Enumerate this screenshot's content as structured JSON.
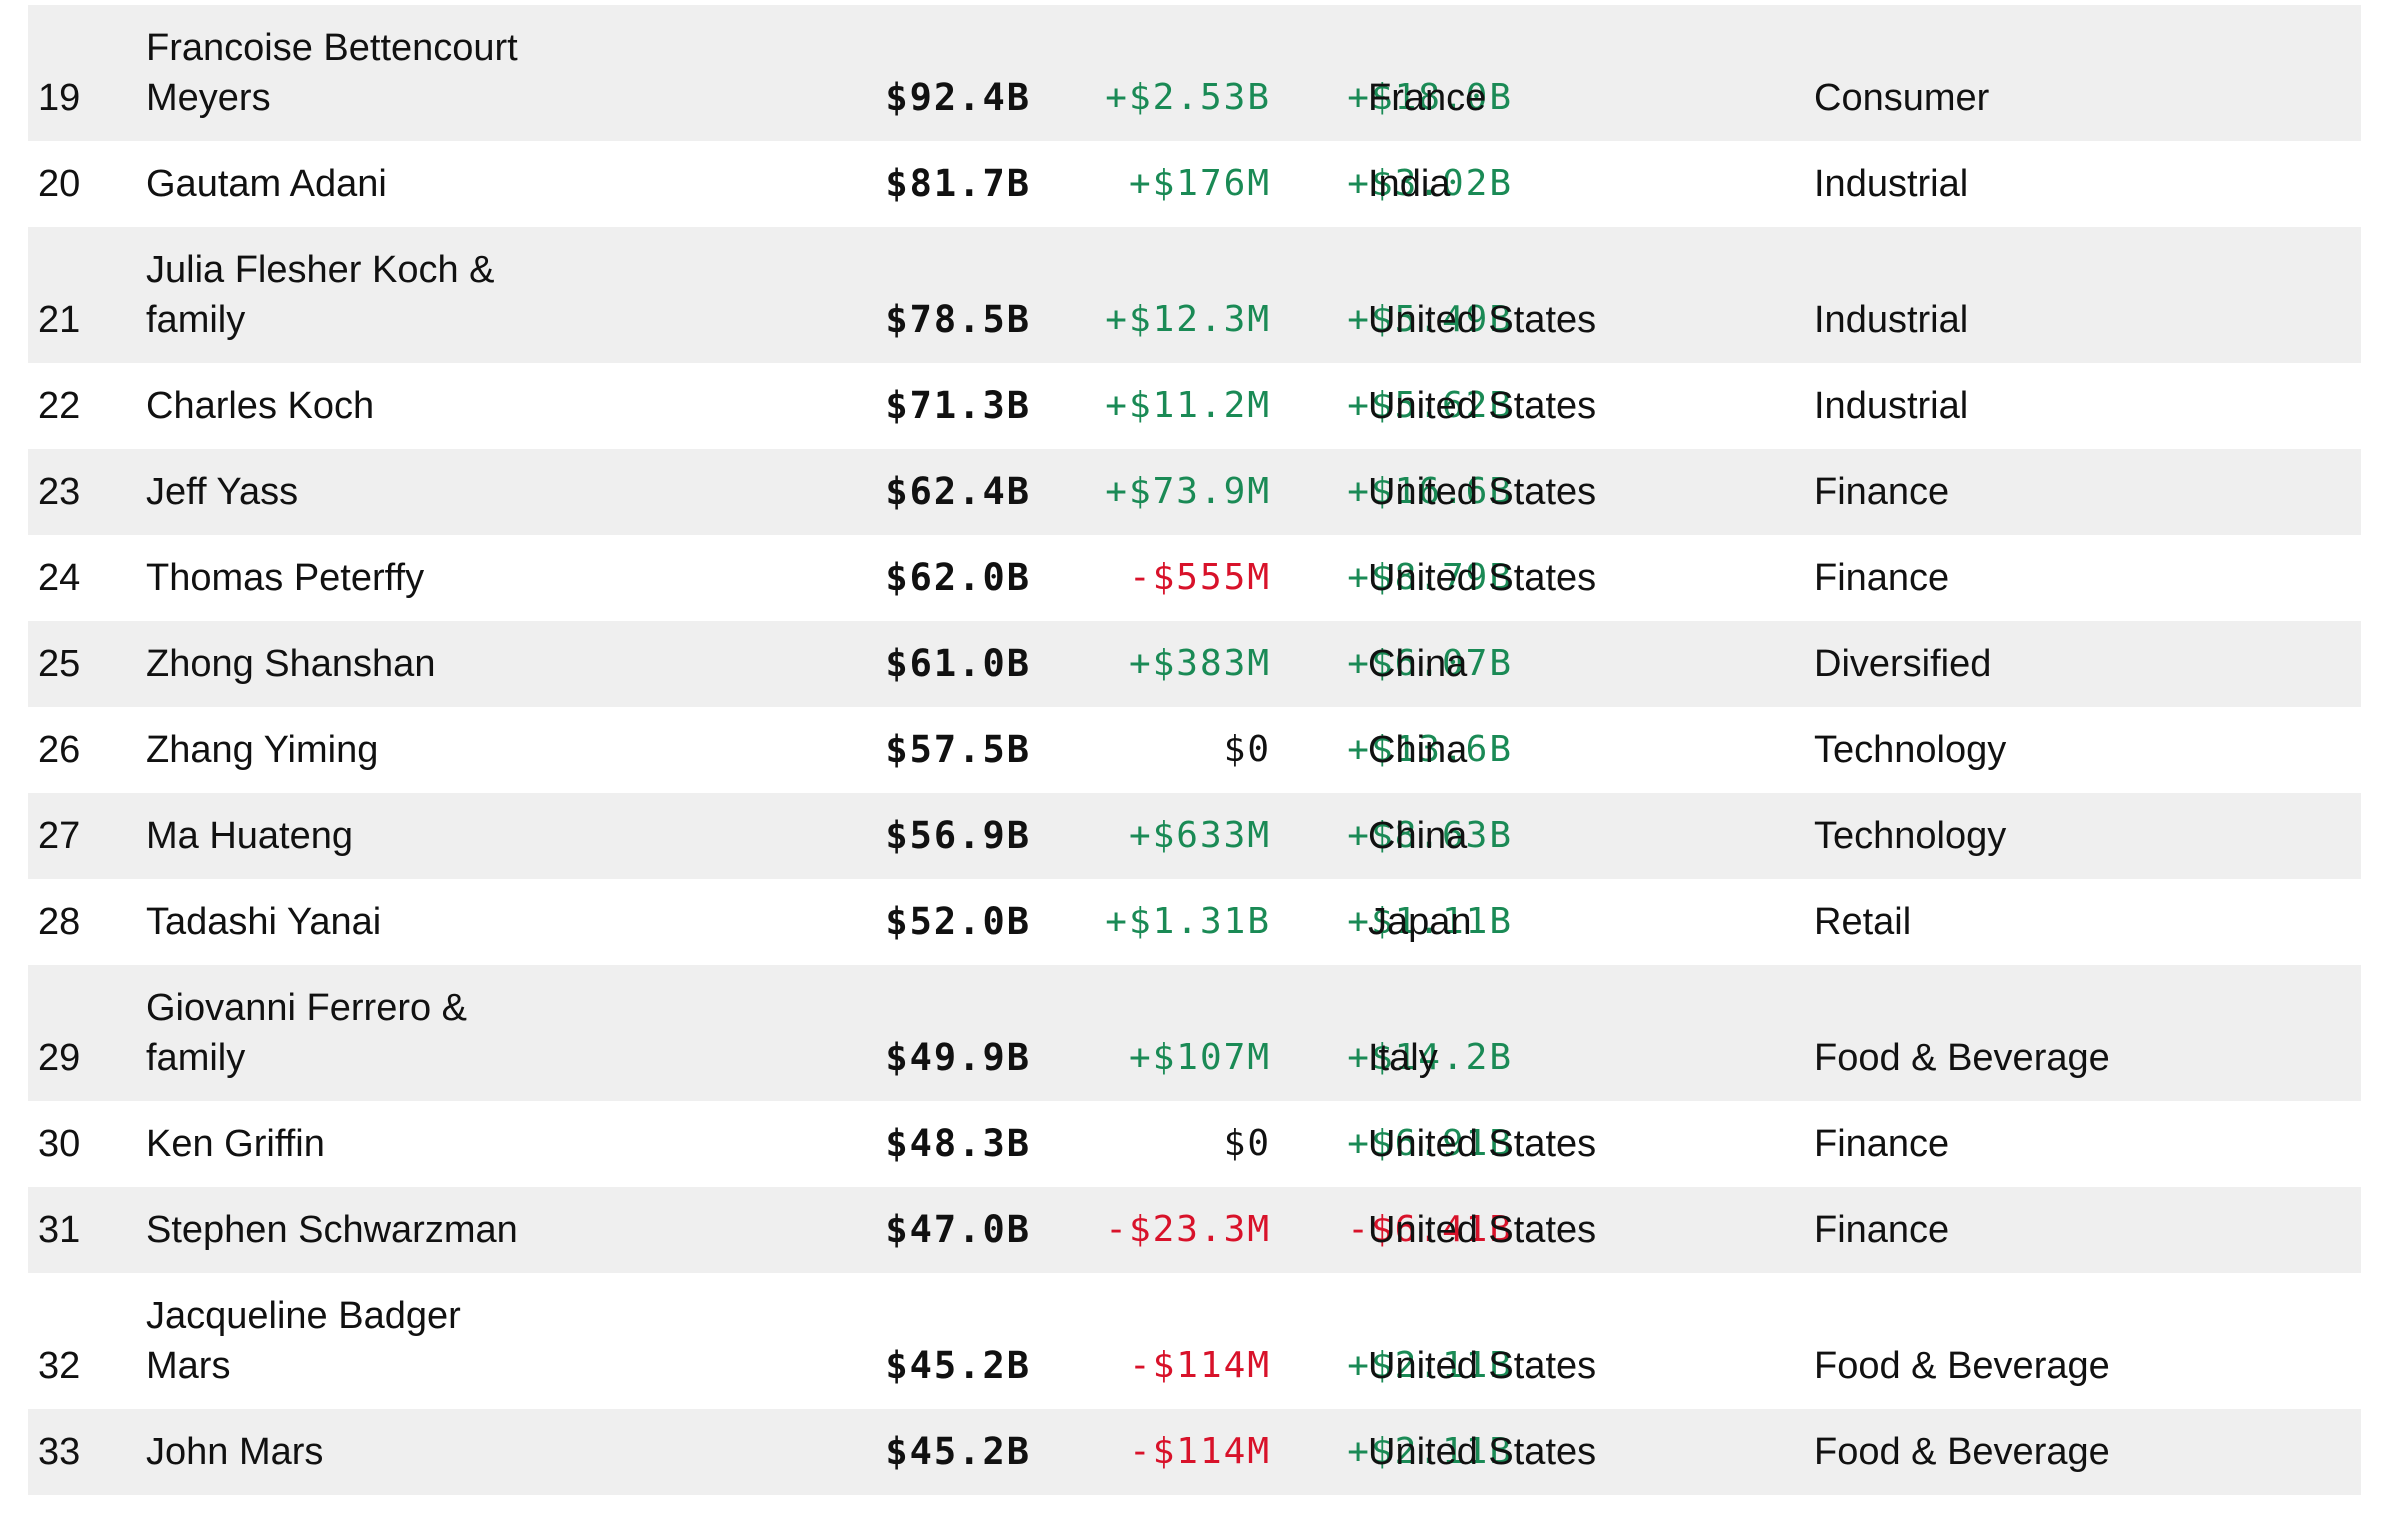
{
  "colors": {
    "row_shade": "#efefef",
    "positive": "#1a8a55",
    "negative": "#d8122a",
    "text": "#111111"
  },
  "rows": [
    {
      "rank": "19",
      "name": "Francoise Bettencourt Meyers",
      "net_worth": "$92.4B",
      "last_change": "+$2.53B",
      "ytd_change": "+$18.0B",
      "country": "France",
      "industry": "Consumer"
    },
    {
      "rank": "20",
      "name": "Gautam Adani",
      "net_worth": "$81.7B",
      "last_change": "+$176M",
      "ytd_change": "+$3.02B",
      "country": "India",
      "industry": "Industrial"
    },
    {
      "rank": "21",
      "name": "Julia Flesher Koch & family",
      "net_worth": "$78.5B",
      "last_change": "+$12.3M",
      "ytd_change": "+$5.49B",
      "country": "United States",
      "industry": "Industrial"
    },
    {
      "rank": "22",
      "name": "Charles Koch",
      "net_worth": "$71.3B",
      "last_change": "+$11.2M",
      "ytd_change": "+$5.62B",
      "country": "United States",
      "industry": "Industrial"
    },
    {
      "rank": "23",
      "name": "Jeff Yass",
      "net_worth": "$62.4B",
      "last_change": "+$73.9M",
      "ytd_change": "+$16.6B",
      "country": "United States",
      "industry": "Finance"
    },
    {
      "rank": "24",
      "name": "Thomas Peterffy",
      "net_worth": "$62.0B",
      "last_change": "-$555M",
      "ytd_change": "+$8.79B",
      "country": "United States",
      "industry": "Finance"
    },
    {
      "rank": "25",
      "name": "Zhong Shanshan",
      "net_worth": "$61.0B",
      "last_change": "+$383M",
      "ytd_change": "+$6.07B",
      "country": "China",
      "industry": "Diversified"
    },
    {
      "rank": "26",
      "name": "Zhang Yiming",
      "net_worth": "$57.5B",
      "last_change": "$0",
      "ytd_change": "+$13.6B",
      "country": "China",
      "industry": "Technology"
    },
    {
      "rank": "27",
      "name": "Ma Huateng",
      "net_worth": "$56.9B",
      "last_change": "+$633M",
      "ytd_change": "+$8.63B",
      "country": "China",
      "industry": "Technology"
    },
    {
      "rank": "28",
      "name": "Tadashi Yanai",
      "net_worth": "$52.0B",
      "last_change": "+$1.31B",
      "ytd_change": "+$1.11B",
      "country": "Japan",
      "industry": "Retail"
    },
    {
      "rank": "29",
      "name": "Giovanni Ferrero & family",
      "net_worth": "$49.9B",
      "last_change": "+$107M",
      "ytd_change": "+$14.2B",
      "country": "Italy",
      "industry": "Food & Beverage"
    },
    {
      "rank": "30",
      "name": "Ken Griffin",
      "net_worth": "$48.3B",
      "last_change": "$0",
      "ytd_change": "+$6.91B",
      "country": "United States",
      "industry": "Finance"
    },
    {
      "rank": "31",
      "name": "Stephen Schwarzman",
      "net_worth": "$47.0B",
      "last_change": "-$23.3M",
      "ytd_change": "-$6.41B",
      "country": "United States",
      "industry": "Finance"
    },
    {
      "rank": "32",
      "name": "Jacqueline Badger Mars",
      "net_worth": "$45.2B",
      "last_change": "-$114M",
      "ytd_change": "+$2.11B",
      "country": "United States",
      "industry": "Food & Beverage"
    },
    {
      "rank": "33",
      "name": "John Mars",
      "net_worth": "$45.2B",
      "last_change": "-$114M",
      "ytd_change": "+$2.11B",
      "country": "United States",
      "industry": "Food & Beverage"
    }
  ]
}
